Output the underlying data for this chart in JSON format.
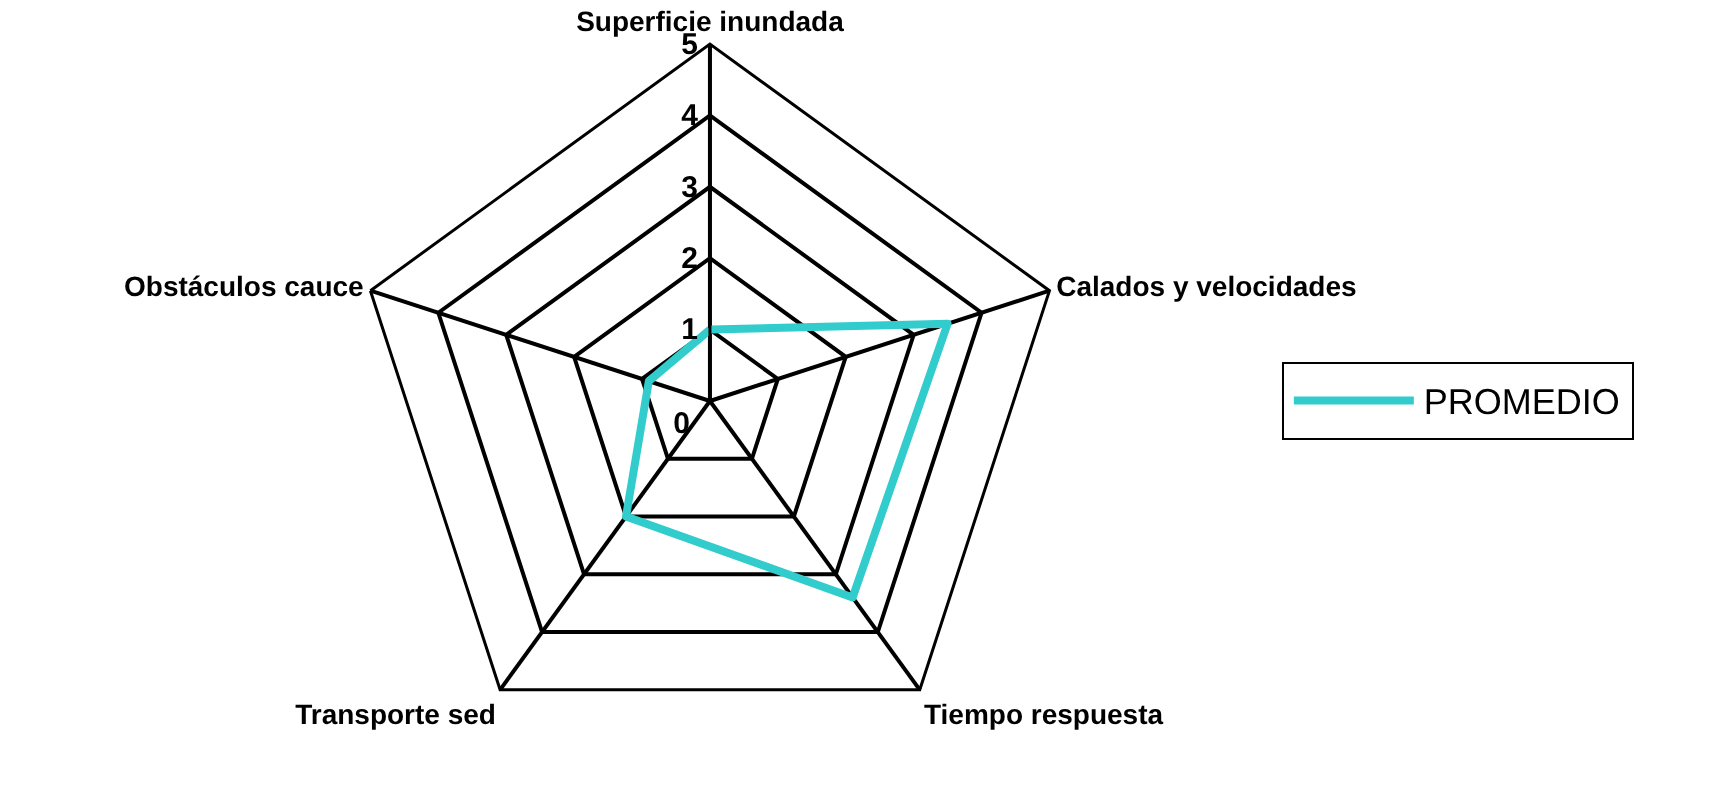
{
  "chart_data": {
    "type": "radar",
    "categories": [
      "Superficie inundada",
      "Calados y velocidades",
      "Tiempo respuesta",
      "Transporte sed",
      "Obstáculos cauce"
    ],
    "series": [
      {
        "name": "PROMEDIO",
        "color": "#33cccc",
        "values": [
          1,
          3.5,
          3.4,
          2,
          0.9
        ]
      }
    ],
    "ylim": [
      0,
      5
    ],
    "yticks": [
      0,
      1,
      2,
      3,
      4,
      5
    ],
    "grid": true,
    "legend": "right",
    "marker": "none",
    "line_style": "solid"
  }
}
